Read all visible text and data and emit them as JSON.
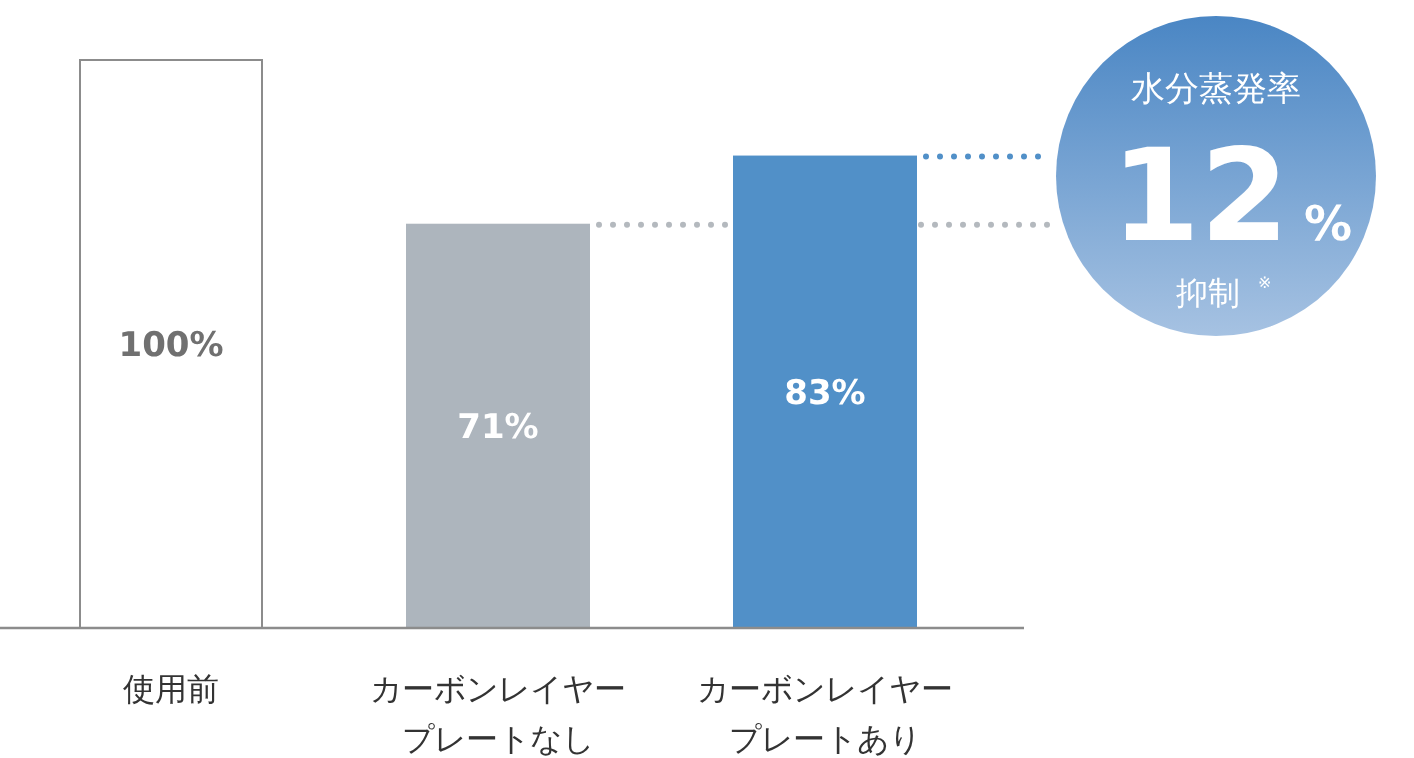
{
  "chart_data": {
    "type": "bar",
    "categories": [
      "使用前",
      "カーボンレイヤープレートなし",
      "カーボンレイヤープレートあり"
    ],
    "values": [
      100,
      71,
      83
    ],
    "colors": [
      "#ffffff",
      "#adb5bd",
      "#5190c8"
    ],
    "value_labels": [
      "100%",
      "71%",
      "83%"
    ],
    "ref_lines": [
      {
        "axis": "y",
        "value": 71,
        "color": "#b4b9be",
        "line_style": "dotted"
      },
      {
        "axis": "y",
        "value": 83,
        "color": "#5190c8",
        "line_style": "dotted"
      }
    ],
    "annotations": [
      "水分蒸発率",
      "12",
      "%",
      "抑制",
      "※"
    ]
  }
}
